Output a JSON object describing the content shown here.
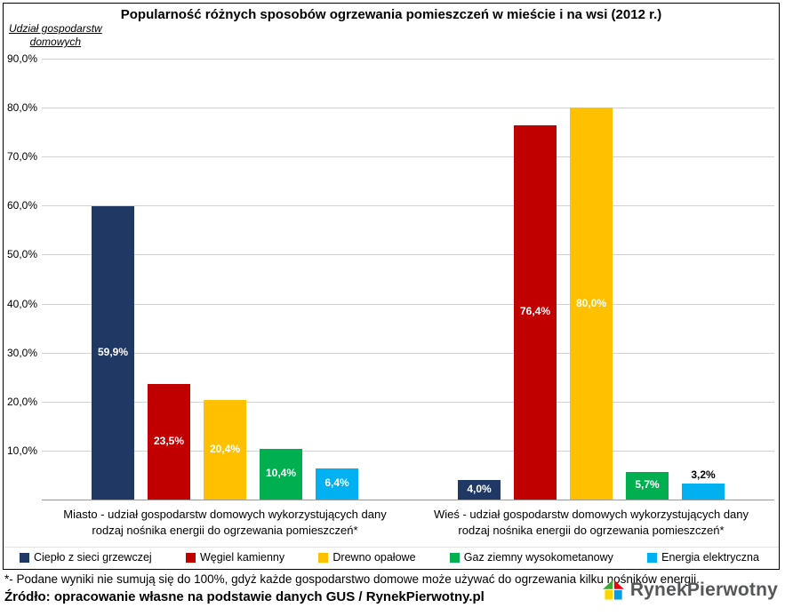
{
  "title": "Popularność różnych sposobów ogrzewania pomieszczeń w mieście i na wsi (2012 r.)",
  "y_axis_title": {
    "line1": "Udział gospodarstw",
    "line2": "domowych"
  },
  "chart_data": {
    "type": "bar",
    "title": "Popularność różnych sposobów ogrzewania pomieszczeń w mieście i na wsi (2012 r.)",
    "ylabel": "Udział gospodarstw domowych",
    "xlabel": "",
    "ylim": [
      0,
      90
    ],
    "ytick_step": 10,
    "ytick_labels": [
      "90,0%",
      "80,0%",
      "70,0%",
      "60,0%",
      "50,0%",
      "40,0%",
      "30,0%",
      "20,0%",
      "10,0%"
    ],
    "grid": true,
    "legend_position": "bottom",
    "categories": [
      "Miasto",
      "Wieś"
    ],
    "series": [
      {
        "name": "Ciepło z sieci grzewczej",
        "color": "#1F3864",
        "values": [
          59.9,
          4.0
        ],
        "value_labels": [
          "59,9%",
          "4,0%"
        ],
        "label_inside": [
          true,
          true
        ]
      },
      {
        "name": "Węgiel kamienny",
        "color": "#C00000",
        "values": [
          23.5,
          76.4
        ],
        "value_labels": [
          "23,5%",
          "76,4%"
        ],
        "label_inside": [
          true,
          true
        ]
      },
      {
        "name": "Drewno opałowe",
        "color": "#FFC000",
        "values": [
          20.4,
          80.0
        ],
        "value_labels": [
          "20,4%",
          "80,0%"
        ],
        "label_inside": [
          true,
          true
        ]
      },
      {
        "name": "Gaz ziemny wysokometanowy",
        "color": "#00B050",
        "values": [
          10.4,
          5.7
        ],
        "value_labels": [
          "10,4%",
          "5,7%"
        ],
        "label_inside": [
          true,
          true
        ]
      },
      {
        "name": "Energia elektryczna",
        "color": "#00B0F0",
        "values": [
          6.4,
          3.2
        ],
        "value_labels": [
          "6,4%",
          "3,2%"
        ],
        "label_inside": [
          true,
          false
        ]
      }
    ]
  },
  "categories": [
    {
      "line1": "Miasto - udział gospodarstw domowych wykorzystujących dany",
      "line2": "rodzaj nośnika energii do ogrzewania pomieszczeń*"
    },
    {
      "line1": "Wieś - udział gospodarstw domowych wykorzystujących dany",
      "line2": "rodzaj nośnika energii do ogrzewania pomieszczeń*"
    }
  ],
  "footnote": "*- Podane wyniki nie sumują się do 100%, gdyż każde gospodarstwo domowe może używać do ogrzewania kilku nośników energii.",
  "source": "Źródło: opracowanie własne na podstawie danych GUS / RynekPierwotny.pl",
  "logo_text": "RynekPierwotny"
}
